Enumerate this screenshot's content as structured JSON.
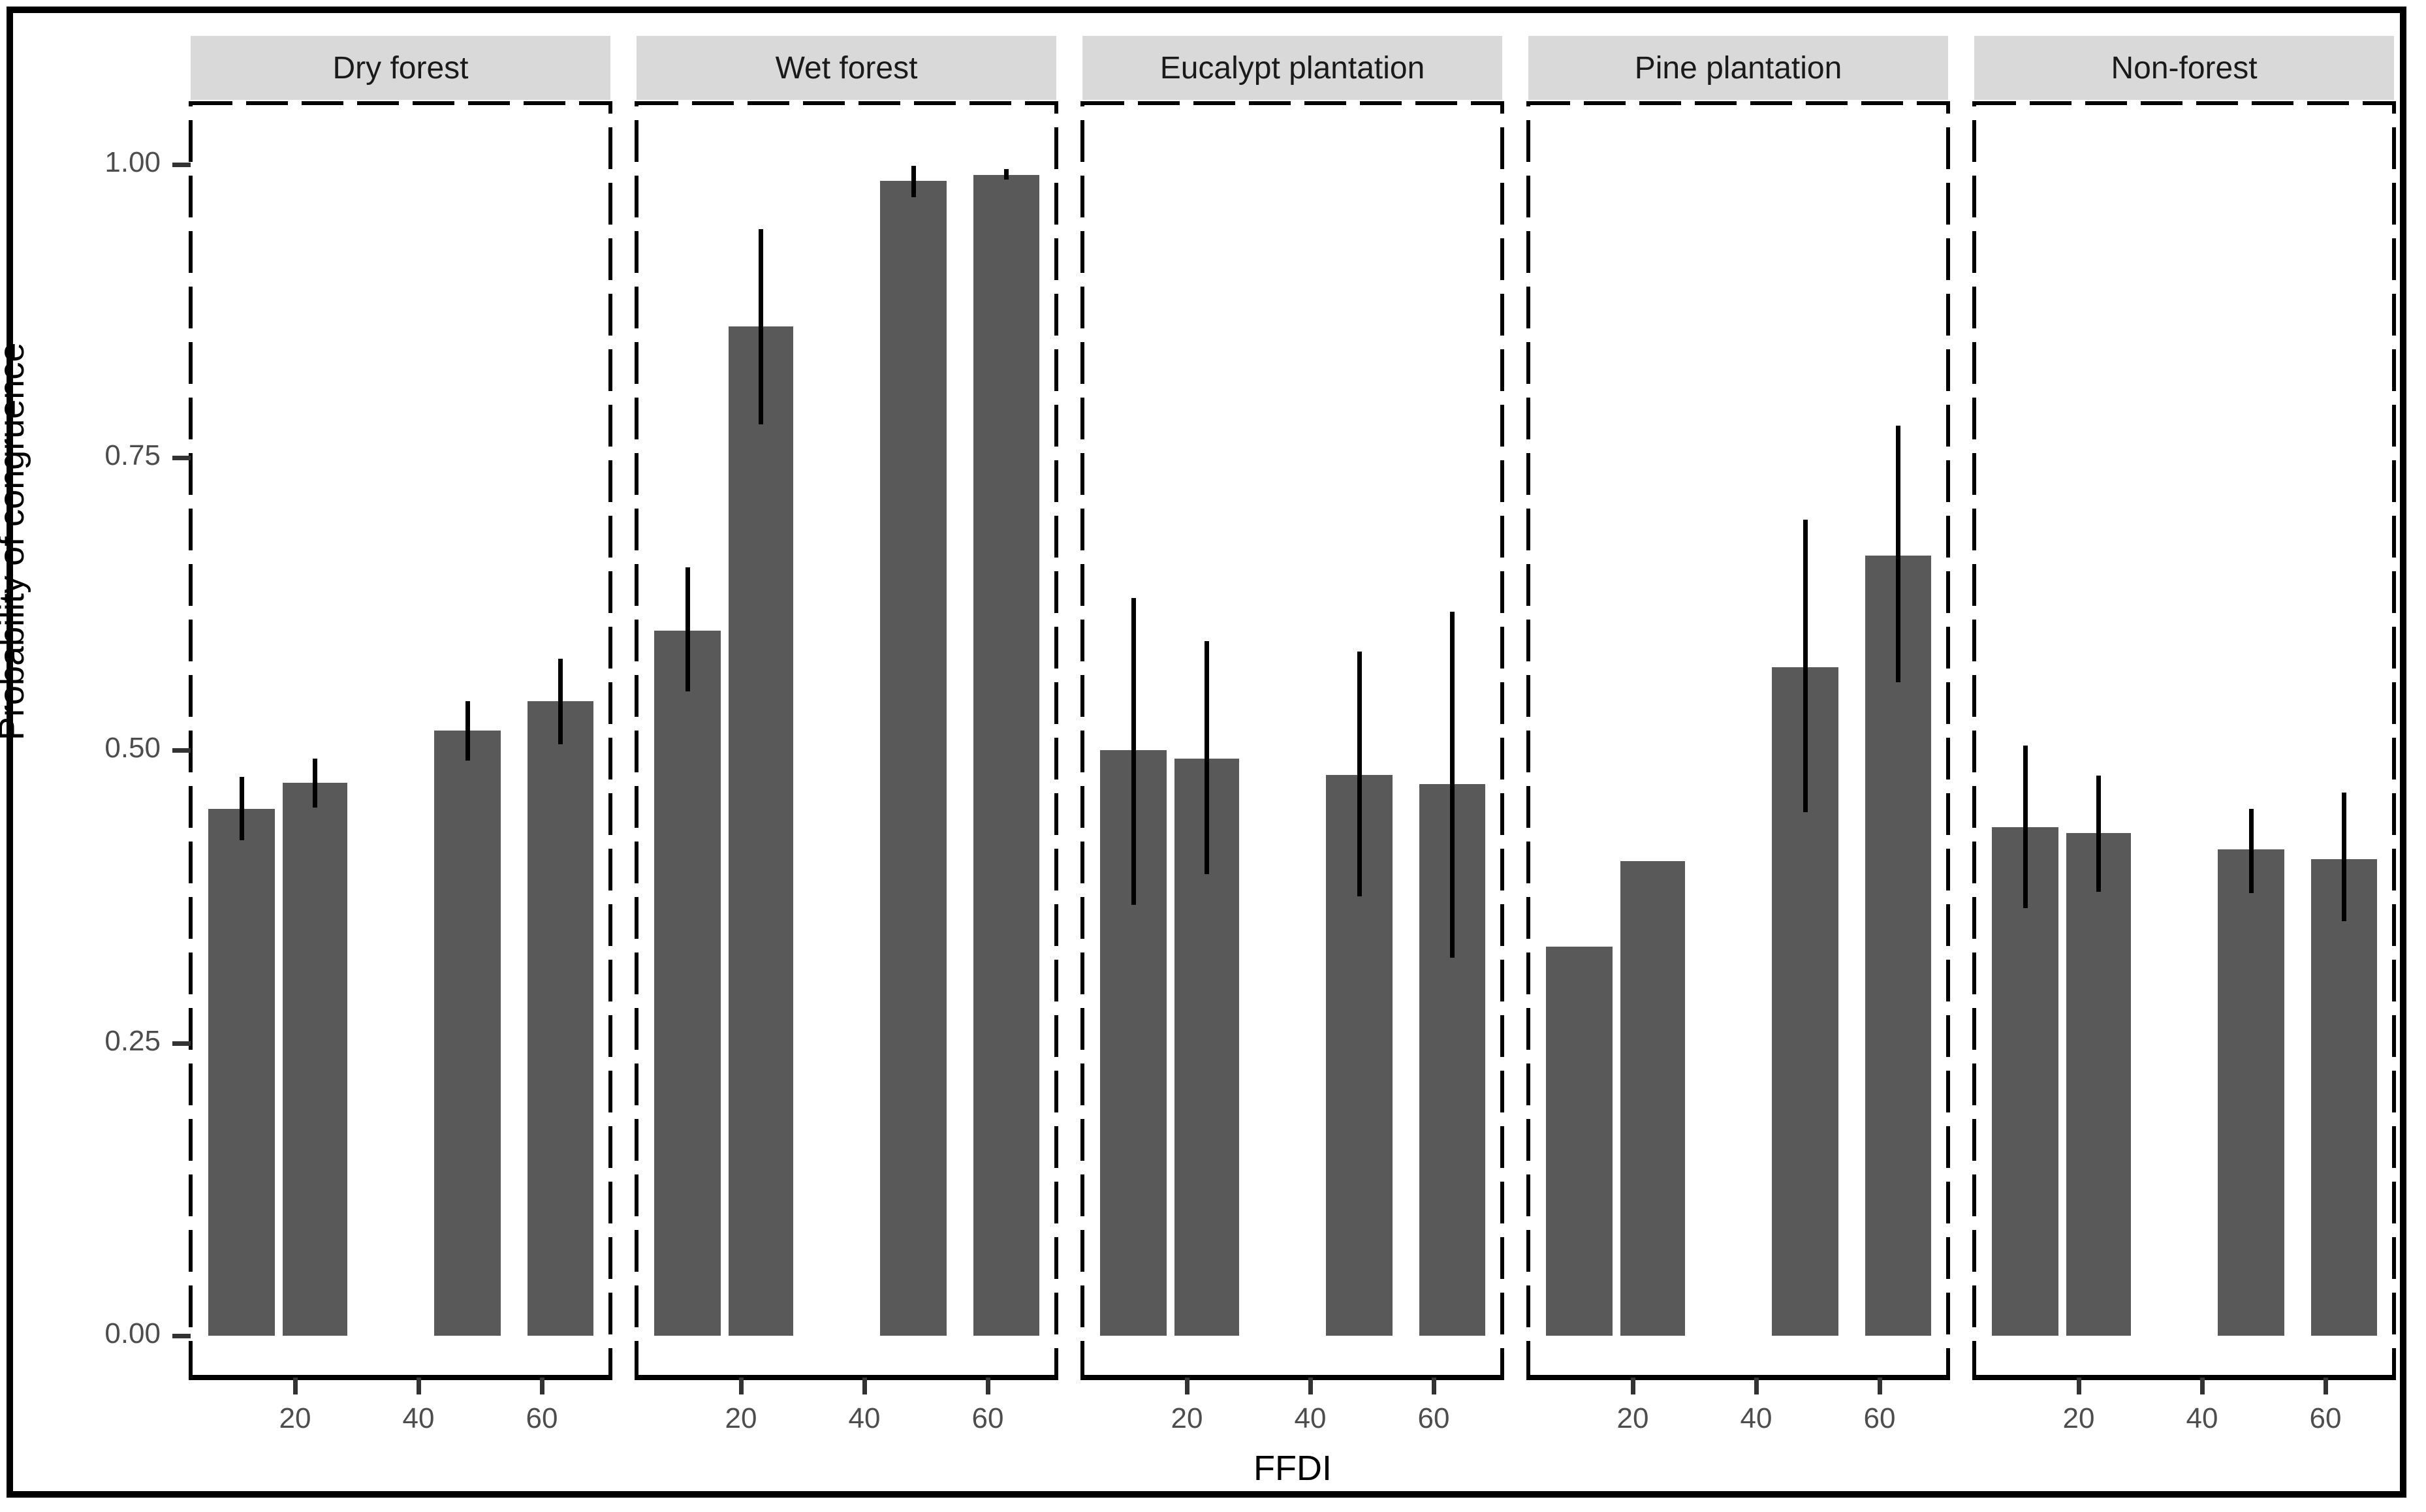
{
  "figure": {
    "y_axis_title": "Probability of congruence",
    "x_axis_title": "FFDI"
  },
  "chart_data": {
    "type": "bar",
    "title": "",
    "xlabel": "FFDI",
    "ylabel": "Probability of congruence",
    "ylim": [
      0,
      1
    ],
    "grid": "off",
    "bar_color": "#595959",
    "error_bar_color": "#000000",
    "strip_background": "#d9d9d9",
    "x": [
      11,
      23,
      48,
      63
    ],
    "x_axis_ticks": [
      {
        "label": "20",
        "value": 20
      },
      {
        "label": "40",
        "value": 40
      },
      {
        "label": "60",
        "value": 60
      }
    ],
    "y_axis_ticks": [
      {
        "label": "1.00",
        "value": 1.0
      },
      {
        "label": "0.75",
        "value": 0.75
      },
      {
        "label": "0.50",
        "value": 0.5
      },
      {
        "label": "0.25",
        "value": 0.25
      },
      {
        "label": "0.00",
        "value": 0.0
      }
    ],
    "facets": [
      {
        "label": "Dry forest",
        "values": [
          0.45,
          0.472,
          0.517,
          0.542
        ],
        "ci_low": [
          0.423,
          0.451,
          0.491,
          0.505
        ],
        "ci_high": [
          0.477,
          0.493,
          0.542,
          0.578
        ]
      },
      {
        "label": "Wet forest",
        "values": [
          0.602,
          0.862,
          0.986,
          0.991
        ],
        "ci_low": [
          0.55,
          0.778,
          0.972,
          0.987
        ],
        "ci_high": [
          0.656,
          0.945,
          0.999,
          0.996
        ]
      },
      {
        "label": "Eucalypt plantation",
        "values": [
          0.5,
          0.493,
          0.479,
          0.471
        ],
        "ci_low": [
          0.368,
          0.394,
          0.375,
          0.323
        ],
        "ci_high": [
          0.63,
          0.593,
          0.584,
          0.618
        ]
      },
      {
        "label": "Pine plantation",
        "values": [
          0.332,
          0.405,
          0.571,
          0.666
        ],
        "ci_low": [
          null,
          null,
          0.447,
          0.558
        ],
        "ci_high": [
          null,
          null,
          0.697,
          0.777
        ]
      },
      {
        "label": "Non-forest",
        "values": [
          0.434,
          0.429,
          0.415,
          0.407
        ],
        "ci_low": [
          0.365,
          0.379,
          0.378,
          0.354
        ],
        "ci_high": [
          0.504,
          0.478,
          0.45,
          0.464
        ]
      }
    ]
  }
}
